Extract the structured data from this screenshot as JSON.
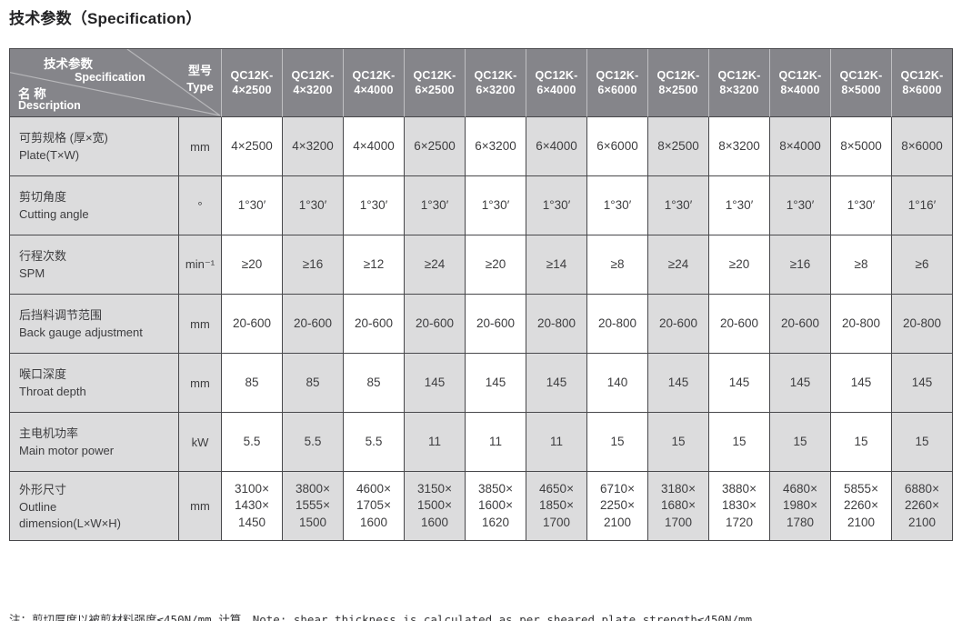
{
  "title": "技术参数（Specification）",
  "colors": {
    "header_bg": "#85858a",
    "header_text": "#ffffff",
    "alt_cell_bg": "#dcdcdd",
    "border": "#48484b",
    "body_text": "#3d3d3f"
  },
  "table": {
    "corner": {
      "param_cn": "技术参数",
      "param_en": "Specification",
      "name_cn": "名 称",
      "name_en": "Description",
      "type": "型号\nType"
    },
    "models": [
      "QC12K-\n4×2500",
      "QC12K-\n4×3200",
      "QC12K-\n4×4000",
      "QC12K-\n6×2500",
      "QC12K-\n6×3200",
      "QC12K-\n6×4000",
      "QC12K-\n6×6000",
      "QC12K-\n8×2500",
      "QC12K-\n8×3200",
      "QC12K-\n8×4000",
      "QC12K-\n8×5000",
      "QC12K-\n8×6000"
    ],
    "rows": [
      {
        "label_cn": "可剪规格 (厚×宽)",
        "label_en": "Plate(T×W)",
        "unit": "mm",
        "values": [
          "4×2500",
          "4×3200",
          "4×4000",
          "6×2500",
          "6×3200",
          "6×4000",
          "6×6000",
          "8×2500",
          "8×3200",
          "8×4000",
          "8×5000",
          "8×6000"
        ]
      },
      {
        "label_cn": "剪切角度",
        "label_en": "Cutting angle",
        "unit": "°",
        "values": [
          "1°30′",
          "1°30′",
          "1°30′",
          "1°30′",
          "1°30′",
          "1°30′",
          "1°30′",
          "1°30′",
          "1°30′",
          "1°30′",
          "1°30′",
          "1°16′"
        ]
      },
      {
        "label_cn": "行程次数",
        "label_en": "SPM",
        "unit": "min⁻¹",
        "values": [
          "≥20",
          "≥16",
          "≥12",
          "≥24",
          "≥20",
          "≥14",
          "≥8",
          "≥24",
          "≥20",
          "≥16",
          "≥8",
          "≥6"
        ]
      },
      {
        "label_cn": "后挡料调节范围",
        "label_en": "Back gauge adjustment",
        "unit": "mm",
        "values": [
          "20-600",
          "20-600",
          "20-600",
          "20-600",
          "20-600",
          "20-800",
          "20-800",
          "20-600",
          "20-600",
          "20-600",
          "20-800",
          "20-800"
        ]
      },
      {
        "label_cn": "喉口深度",
        "label_en": "Throat depth",
        "unit": "mm",
        "values": [
          "85",
          "85",
          "85",
          "145",
          "145",
          "145",
          "140",
          "145",
          "145",
          "145",
          "145",
          "145"
        ]
      },
      {
        "label_cn": "主电机功率",
        "label_en": "Main motor power",
        "unit": "kW",
        "values": [
          "5.5",
          "5.5",
          "5.5",
          "11",
          "11",
          "11",
          "15",
          "15",
          "15",
          "15",
          "15",
          "15"
        ]
      },
      {
        "label_cn": "外形尺寸",
        "label_en": "Outline\ndimension(L×W×H)",
        "unit": "mm",
        "values": [
          "3100×\n1430×\n1450",
          "3800×\n1555×\n1500",
          "4600×\n1705×\n1600",
          "3150×\n1500×\n1600",
          "3850×\n1600×\n1620",
          "4650×\n1850×\n1700",
          "6710×\n2250×\n2100",
          "3180×\n1680×\n1700",
          "3880×\n1830×\n1720",
          "4680×\n1980×\n1780",
          "5855×\n2260×\n2100",
          "6880×\n2260×\n2100"
        ]
      }
    ]
  },
  "note": "注：剪切厚度以被剪材料强度≤450N/mm 计算。Note: shear thickness is calculated as per sheared plate strength≤450N/mm"
}
